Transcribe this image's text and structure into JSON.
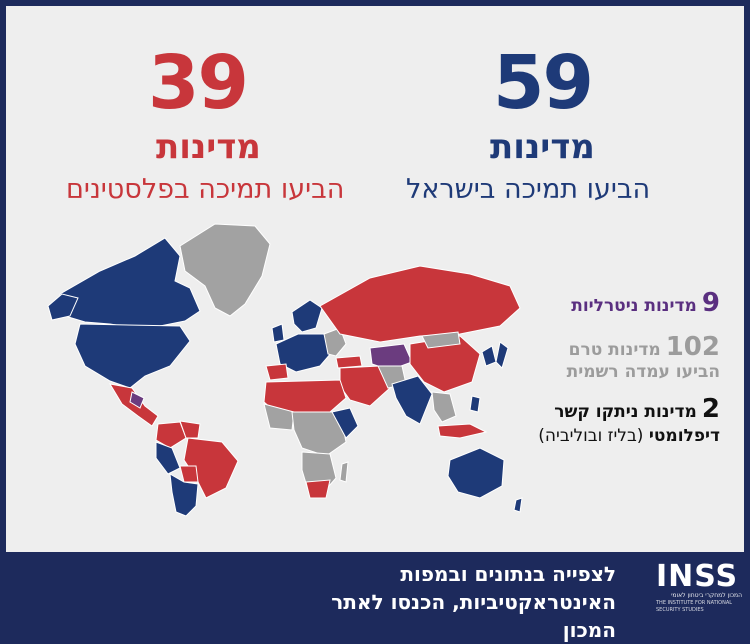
{
  "israel": {
    "number": "59",
    "unit": "מדינות",
    "caption": "הביעו תמיכה בישראל",
    "color": "#1e3a78"
  },
  "palestinians": {
    "number": "39",
    "unit": "מדינות",
    "caption": "הביעו תמיכה בפלסטינים",
    "color": "#c8363b"
  },
  "legend": {
    "neutral": {
      "number": "9",
      "text": "מדינות ניטרליות",
      "color": "#5a2f80"
    },
    "undeclared": {
      "number": "102",
      "text_line1": "מדינות טרם",
      "text_line2": "הביעו עמדה רשמית",
      "color": "#9c9c9c"
    },
    "cut_ties": {
      "number": "2",
      "text_line1": "מדינות ניתקו קשר",
      "text_line2": "דיפלומטי",
      "text_paren": "(בליז ובוליביה)",
      "color": "#111111"
    }
  },
  "footer": {
    "line1": "לצפייה בנתונים ובמפות",
    "line2": "האינטראקטיביות, הכנסו לאתר המכון"
  },
  "logo": {
    "name": "INSS",
    "sub_hebrew": "המכון למחקרי ביטחון לאומי",
    "sub_english": "THE INSTITUTE FOR NATIONAL SECURITY STUDIES"
  }
}
